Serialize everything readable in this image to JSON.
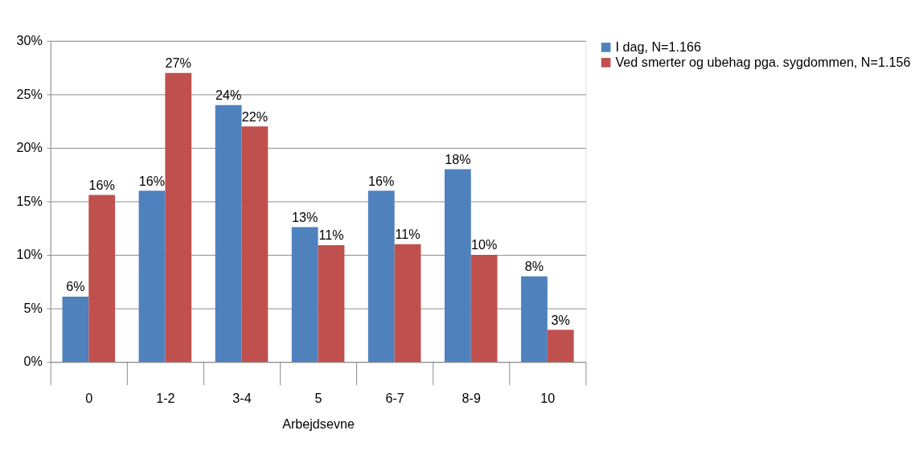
{
  "chart_data": {
    "type": "bar",
    "xlabel": "Arbejdsevne",
    "categories": [
      "0",
      "1-2",
      "3-4",
      "5",
      "6-7",
      "8-9",
      "10"
    ],
    "series": [
      {
        "name": "I dag, N=1.166",
        "color": "#4f81bd",
        "values": [
          6.1,
          16,
          24,
          12.6,
          16,
          18,
          8
        ],
        "value_labels": [
          "6%",
          "16%",
          "24%",
          "13%",
          "16%",
          "18%",
          "8%"
        ]
      },
      {
        "name": "Ved smerter og ubehag pga. sygdommen, N=1.156",
        "color": "#c0504d",
        "values": [
          15.6,
          27,
          22,
          10.9,
          11,
          10,
          3
        ],
        "value_labels": [
          "16%",
          "27%",
          "22%",
          "11%",
          "11%",
          "10%",
          "3%"
        ]
      }
    ],
    "ylim": [
      0,
      30
    ],
    "yticks": [
      {
        "value": 0,
        "label": "0%"
      },
      {
        "value": 5,
        "label": "5%"
      },
      {
        "value": 10,
        "label": "10%"
      },
      {
        "value": 15,
        "label": "15%"
      },
      {
        "value": 20,
        "label": "20%"
      },
      {
        "value": 25,
        "label": "25%"
      },
      {
        "value": 30,
        "label": "30%"
      }
    ],
    "grid": "y",
    "legend": "right"
  }
}
